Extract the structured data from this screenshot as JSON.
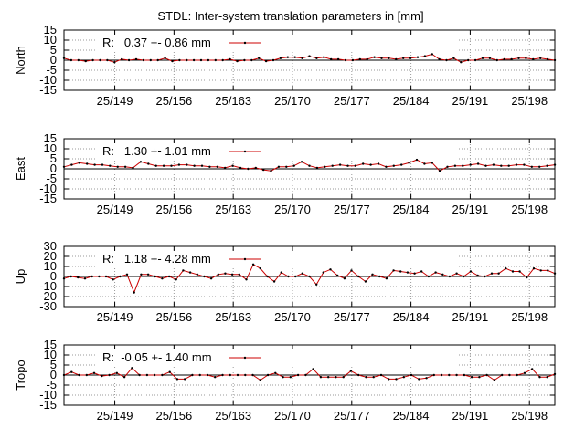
{
  "title": "STDL: Inter-system translation parameters in [mm]",
  "chart_data": [
    {
      "type": "line",
      "ylabel": "North",
      "ylim": [
        -15,
        15
      ],
      "yticks": [
        15,
        10,
        5,
        0,
        -5,
        -10,
        -15
      ],
      "xlim": [
        143,
        201
      ],
      "xticks": [
        149,
        156,
        163,
        170,
        177,
        184,
        191,
        198
      ],
      "xtick_labels": [
        "25/149",
        "25/156",
        "25/163",
        "25/170",
        "25/177",
        "25/184",
        "25/191",
        "25/198"
      ],
      "legend": "R:   0.37 +- 0.86 mm",
      "values": [
        1,
        0,
        0,
        -0.5,
        0,
        0,
        0,
        -1,
        0.5,
        0,
        0.5,
        0,
        0,
        0,
        1,
        -0.5,
        0,
        0,
        0,
        0,
        0,
        0,
        0,
        0.5,
        -0.5,
        0,
        0,
        1,
        -0.5,
        0,
        1,
        1.5,
        1.5,
        1,
        2,
        1,
        1.5,
        0.5,
        0.5,
        0,
        0,
        0.5,
        0.5,
        1.5,
        1,
        1,
        0.5,
        1,
        1,
        1.5,
        2,
        3,
        0.5,
        0,
        1,
        -1,
        0,
        0,
        1,
        1,
        0,
        0.5,
        0.5,
        1,
        1,
        0.5,
        1,
        0.5,
        0
      ]
    },
    {
      "type": "line",
      "ylabel": "East",
      "ylim": [
        -15,
        15
      ],
      "yticks": [
        15,
        10,
        5,
        0,
        -5,
        -10,
        -15
      ],
      "xlim": [
        143,
        201
      ],
      "xticks": [
        149,
        156,
        163,
        170,
        177,
        184,
        191,
        198
      ],
      "xtick_labels": [
        "25/149",
        "25/156",
        "25/163",
        "25/170",
        "25/177",
        "25/184",
        "25/191",
        "25/198"
      ],
      "legend": "R:   1.30 +- 1.01 mm",
      "values": [
        1,
        2,
        3,
        2.5,
        2,
        2,
        1.5,
        1,
        1,
        0.5,
        3.5,
        2.5,
        1.5,
        1.5,
        1.5,
        2,
        2,
        1.5,
        1.5,
        1,
        1,
        0.5,
        1.5,
        0.5,
        0,
        0.5,
        -0.5,
        -1,
        1,
        1,
        1.5,
        3.5,
        1.5,
        0.5,
        1,
        1.5,
        2,
        1.5,
        1.5,
        2.5,
        2,
        2.5,
        1,
        1.5,
        2,
        3,
        4.5,
        2.5,
        3,
        -1,
        1,
        1.5,
        1.5,
        2,
        2.5,
        1.5,
        2,
        1.5,
        1.5,
        2,
        2,
        1,
        1,
        1.5,
        2
      ]
    },
    {
      "type": "line",
      "ylabel": "Up",
      "ylim": [
        -30,
        30
      ],
      "yticks": [
        30,
        20,
        10,
        0,
        -10,
        -20,
        -30
      ],
      "xlim": [
        143,
        201
      ],
      "xticks": [
        149,
        156,
        163,
        170,
        177,
        184,
        191,
        198
      ],
      "xtick_labels": [
        "25/149",
        "25/156",
        "25/163",
        "25/170",
        "25/177",
        "25/184",
        "25/191",
        "25/198"
      ],
      "legend": "R:   1.18 +- 4.28 mm",
      "values": [
        -2,
        0,
        -1,
        -2,
        0,
        0,
        0,
        -3,
        0,
        2,
        -16,
        2,
        2,
        0,
        -2,
        0,
        -3,
        6,
        4,
        2,
        0,
        -2,
        2,
        3,
        2,
        2,
        -3,
        12,
        8,
        0,
        -5,
        4,
        0,
        0,
        3,
        0,
        -8,
        4,
        7,
        1,
        -2,
        6,
        0,
        -5,
        2,
        0,
        -2,
        6,
        5,
        4,
        3,
        5,
        0,
        4,
        2,
        0,
        3,
        0,
        5,
        1,
        0,
        3,
        3,
        8,
        5,
        5,
        -1,
        8,
        6,
        6,
        3
      ]
    },
    {
      "type": "line",
      "ylabel": "Tropo",
      "ylim": [
        -15,
        15
      ],
      "yticks": [
        15,
        10,
        5,
        0,
        -5,
        -10,
        -15
      ],
      "xlim": [
        143,
        201
      ],
      "xticks": [
        149,
        156,
        163,
        170,
        177,
        184,
        191,
        198
      ],
      "xtick_labels": [
        "25/149",
        "25/156",
        "25/163",
        "25/170",
        "25/177",
        "25/184",
        "25/191",
        "25/198"
      ],
      "legend": "R:  -0.05 +- 1.40 mm",
      "values": [
        0,
        1.5,
        0,
        0,
        1,
        -0.5,
        0,
        1,
        -1,
        3.5,
        0,
        0,
        0,
        0,
        1.5,
        -2,
        -2,
        0,
        0,
        0,
        -1,
        0,
        0,
        0,
        0,
        0,
        -2.5,
        0,
        1,
        -1,
        -1,
        0,
        0,
        3,
        -1,
        -1,
        -1,
        -1,
        2,
        0,
        -1,
        -1,
        0,
        -2,
        -2,
        -1,
        0,
        -2,
        -1.5,
        0,
        0,
        0,
        0,
        0,
        -1,
        -1,
        0,
        -2.5,
        0,
        0,
        0,
        1,
        3,
        -1,
        -1,
        0.5
      ]
    }
  ]
}
